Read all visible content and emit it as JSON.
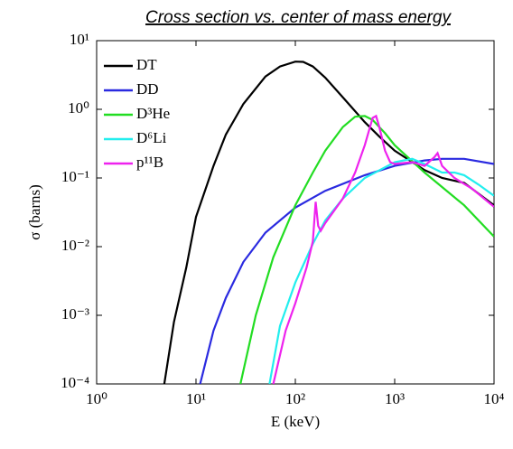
{
  "chart_data": {
    "type": "line",
    "title": "Cross section vs. center of mass energy",
    "xlabel": "E (keV)",
    "ylabel": "σ (barns)",
    "xscale": "log",
    "yscale": "log",
    "xlim": [
      1,
      10000
    ],
    "ylim": [
      0.0001,
      10
    ],
    "legend": "upper left",
    "grid": false,
    "xticks": [
      {
        "value": 1,
        "label": "10⁰"
      },
      {
        "value": 10,
        "label": "10¹"
      },
      {
        "value": 100,
        "label": "10²"
      },
      {
        "value": 1000,
        "label": "10³"
      },
      {
        "value": 10000,
        "label": "10⁴"
      }
    ],
    "yticks": [
      {
        "value": 0.0001,
        "label": "10⁻⁴"
      },
      {
        "value": 0.001,
        "label": "10⁻³"
      },
      {
        "value": 0.01,
        "label": "10⁻²"
      },
      {
        "value": 0.1,
        "label": "10⁻¹"
      },
      {
        "value": 1,
        "label": "10⁰"
      },
      {
        "value": 10,
        "label": "10¹"
      }
    ],
    "series": [
      {
        "name": "DT",
        "color": "#000000",
        "x": [
          4.8,
          6,
          8,
          10,
          15,
          20,
          30,
          50,
          70,
          100,
          120,
          150,
          200,
          300,
          500,
          700,
          1000,
          2000,
          3000,
          5000,
          10000
        ],
        "values": [
          0.0001,
          0.0008,
          0.005,
          0.027,
          0.15,
          0.43,
          1.2,
          3.0,
          4.2,
          4.95,
          4.9,
          4.2,
          2.9,
          1.5,
          0.65,
          0.4,
          0.25,
          0.13,
          0.1,
          0.085,
          0.04
        ]
      },
      {
        "name": "DD",
        "color": "#2a2ae0",
        "x": [
          11,
          15,
          20,
          30,
          50,
          100,
          200,
          500,
          1000,
          2000,
          3000,
          5000,
          10000
        ],
        "values": [
          0.0001,
          0.0006,
          0.0018,
          0.006,
          0.016,
          0.037,
          0.065,
          0.11,
          0.15,
          0.18,
          0.19,
          0.19,
          0.16
        ]
      },
      {
        "name": "D³He",
        "color": "#22dd22",
        "x": [
          28,
          40,
          60,
          100,
          150,
          200,
          300,
          400,
          500,
          600,
          800,
          1000,
          2000,
          5000,
          10000
        ],
        "values": [
          0.0001,
          0.001,
          0.007,
          0.04,
          0.12,
          0.25,
          0.55,
          0.78,
          0.8,
          0.7,
          0.45,
          0.3,
          0.12,
          0.04,
          0.014
        ]
      },
      {
        "name": "D⁶Li",
        "color": "#22eeee",
        "x": [
          55,
          70,
          100,
          150,
          200,
          300,
          500,
          1000,
          1500,
          2000,
          3000,
          4000,
          5000,
          7000,
          10000
        ],
        "values": [
          0.0001,
          0.0007,
          0.003,
          0.011,
          0.024,
          0.05,
          0.1,
          0.17,
          0.19,
          0.16,
          0.12,
          0.12,
          0.11,
          0.08,
          0.055
        ]
      },
      {
        "name": "p¹¹B",
        "color": "#ee22ee",
        "x": [
          60,
          80,
          100,
          130,
          150,
          160,
          170,
          180,
          200,
          300,
          400,
          500,
          600,
          650,
          700,
          800,
          900,
          1000,
          1500,
          2000,
          2500,
          2700,
          3000,
          4000,
          6000,
          10000
        ],
        "values": [
          0.0001,
          0.0006,
          0.0015,
          0.005,
          0.012,
          0.045,
          0.02,
          0.017,
          0.022,
          0.05,
          0.12,
          0.3,
          0.75,
          0.8,
          0.55,
          0.25,
          0.17,
          0.16,
          0.17,
          0.15,
          0.2,
          0.23,
          0.15,
          0.1,
          0.07,
          0.038
        ]
      }
    ]
  }
}
